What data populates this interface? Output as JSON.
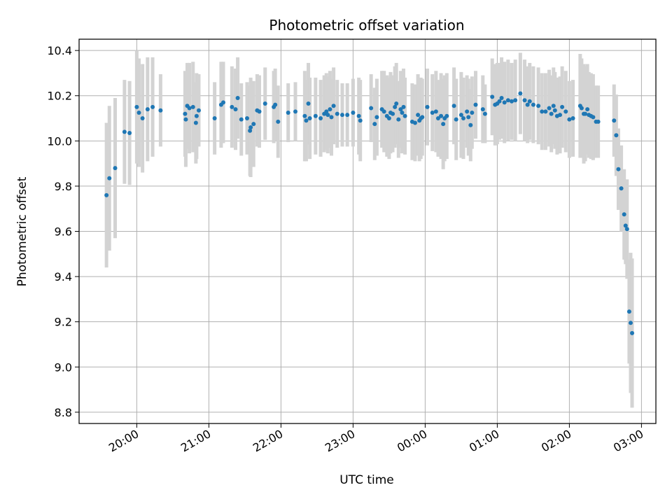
{
  "chart_data": {
    "type": "scatter",
    "title": "Photometric offset variation",
    "xlabel": "UTC time",
    "ylabel": "Photometric offset",
    "x_unit": "hours UTC since 00:00 on the first night",
    "xlim": [
      19.2,
      27.2
    ],
    "ylim": [
      8.75,
      10.45
    ],
    "x_ticks": [
      {
        "value": 20,
        "label": "20:00"
      },
      {
        "value": 21,
        "label": "21:00"
      },
      {
        "value": 22,
        "label": "22:00"
      },
      {
        "value": 23,
        "label": "23:00"
      },
      {
        "value": 24,
        "label": "00:00"
      },
      {
        "value": 25,
        "label": "01:00"
      },
      {
        "value": 26,
        "label": "02:00"
      },
      {
        "value": 27,
        "label": "03:00"
      }
    ],
    "y_ticks": [
      {
        "value": 8.8,
        "label": "8.8"
      },
      {
        "value": 9.0,
        "label": "9.0"
      },
      {
        "value": 9.2,
        "label": "9.2"
      },
      {
        "value": 9.4,
        "label": "9.4"
      },
      {
        "value": 9.6,
        "label": "9.6"
      },
      {
        "value": 9.8,
        "label": "9.8"
      },
      {
        "value": 10.0,
        "label": "10.0"
      },
      {
        "value": 10.2,
        "label": "10.2"
      },
      {
        "value": 10.4,
        "label": "10.4"
      }
    ],
    "grid": true,
    "colors": {
      "points": "#1f77b4",
      "errorbars": "#d3d3d3",
      "grid": "#b0b0b0"
    },
    "series": [
      {
        "x": [
          19.58,
          19.62,
          19.7,
          19.83,
          19.9,
          20.0,
          20.03,
          20.08,
          20.15,
          20.22,
          20.33,
          20.67,
          20.68,
          20.7,
          20.73,
          20.78,
          20.82,
          20.83,
          20.86,
          21.08,
          21.17,
          21.2,
          21.32,
          21.37,
          21.4,
          21.45,
          21.53,
          21.57,
          21.58,
          21.62,
          21.67,
          21.7,
          21.78,
          21.9,
          21.92,
          21.96,
          22.1,
          22.2,
          22.33,
          22.35,
          22.38,
          22.4,
          22.48,
          22.55,
          22.6,
          22.63,
          22.65,
          22.68,
          22.7,
          22.73,
          22.78,
          22.85,
          22.92,
          23.0,
          23.08,
          23.1,
          23.25,
          23.3,
          23.33,
          23.4,
          23.43,
          23.47,
          23.5,
          23.52,
          23.55,
          23.58,
          23.6,
          23.63,
          23.66,
          23.68,
          23.7,
          23.72,
          23.82,
          23.86,
          23.9,
          23.92,
          23.94,
          23.96,
          24.03,
          24.1,
          24.15,
          24.18,
          24.22,
          24.25,
          24.27,
          24.3,
          24.4,
          24.43,
          24.5,
          24.53,
          24.58,
          24.6,
          24.63,
          24.65,
          24.7,
          24.8,
          24.83,
          24.93,
          24.97,
          25.0,
          25.03,
          25.06,
          25.1,
          25.15,
          25.2,
          25.25,
          25.32,
          25.38,
          25.42,
          25.45,
          25.5,
          25.57,
          25.62,
          25.67,
          25.72,
          25.75,
          25.78,
          25.8,
          25.83,
          25.87,
          25.9,
          25.95,
          26.0,
          26.05,
          26.15,
          26.17,
          26.2,
          26.22,
          26.25,
          26.27,
          26.3,
          26.33,
          26.37,
          26.4,
          26.62,
          26.65,
          26.68,
          26.72,
          26.76,
          26.78,
          26.8,
          26.83,
          26.85,
          26.87
        ],
        "y": [
          9.76,
          9.835,
          9.88,
          10.04,
          10.035,
          10.15,
          10.125,
          10.1,
          10.14,
          10.15,
          10.135,
          10.12,
          10.095,
          10.155,
          10.145,
          10.15,
          10.08,
          10.11,
          10.135,
          10.1,
          10.16,
          10.17,
          10.15,
          10.14,
          10.19,
          10.095,
          10.1,
          10.045,
          10.06,
          10.075,
          10.135,
          10.13,
          10.165,
          10.15,
          10.16,
          10.085,
          10.125,
          10.13,
          10.11,
          10.09,
          10.165,
          10.1,
          10.11,
          10.1,
          10.12,
          10.13,
          10.115,
          10.14,
          10.105,
          10.155,
          10.12,
          10.115,
          10.115,
          10.125,
          10.11,
          10.09,
          10.145,
          10.075,
          10.105,
          10.14,
          10.13,
          10.11,
          10.1,
          10.125,
          10.12,
          10.15,
          10.165,
          10.095,
          10.14,
          10.125,
          10.15,
          10.11,
          10.085,
          10.08,
          10.115,
          10.09,
          10.1,
          10.105,
          10.15,
          10.125,
          10.13,
          10.1,
          10.11,
          10.075,
          10.1,
          10.11,
          10.155,
          10.095,
          10.115,
          10.1,
          10.13,
          10.105,
          10.07,
          10.125,
          10.16,
          10.14,
          10.12,
          10.195,
          10.16,
          10.165,
          10.175,
          10.19,
          10.17,
          10.18,
          10.175,
          10.18,
          10.21,
          10.18,
          10.16,
          10.175,
          10.16,
          10.155,
          10.13,
          10.13,
          10.145,
          10.12,
          10.155,
          10.135,
          10.11,
          10.115,
          10.15,
          10.13,
          10.095,
          10.1,
          10.155,
          10.145,
          10.12,
          10.12,
          10.14,
          10.115,
          10.11,
          10.105,
          10.085,
          10.085,
          10.09,
          10.025,
          9.875,
          9.79,
          9.675,
          9.625,
          9.61,
          9.245,
          9.195,
          9.15
        ],
        "err": [
          0.32,
          0.32,
          0.31,
          0.23,
          0.23,
          0.25,
          0.24,
          0.24,
          0.23,
          0.22,
          0.16,
          0.19,
          0.21,
          0.19,
          0.2,
          0.2,
          0.18,
          0.19,
          0.16,
          0.16,
          0.19,
          0.18,
          0.18,
          0.18,
          0.18,
          0.16,
          0.16,
          0.2,
          0.22,
          0.19,
          0.16,
          0.16,
          0.16,
          0.16,
          0.16,
          0.16,
          0.13,
          0.13,
          0.2,
          0.18,
          0.18,
          0.18,
          0.17,
          0.17,
          0.17,
          0.17,
          0.17,
          0.17,
          0.17,
          0.17,
          0.15,
          0.14,
          0.14,
          0.15,
          0.17,
          0.18,
          0.15,
          0.16,
          0.17,
          0.17,
          0.18,
          0.18,
          0.18,
          0.18,
          0.17,
          0.18,
          0.18,
          0.17,
          0.17,
          0.18,
          0.17,
          0.17,
          0.17,
          0.17,
          0.18,
          0.18,
          0.18,
          0.17,
          0.17,
          0.17,
          0.18,
          0.17,
          0.19,
          0.2,
          0.19,
          0.19,
          0.17,
          0.18,
          0.19,
          0.18,
          0.16,
          0.17,
          0.16,
          0.16,
          0.15,
          0.15,
          0.13,
          0.17,
          0.18,
          0.18,
          0.17,
          0.18,
          0.18,
          0.18,
          0.17,
          0.18,
          0.18,
          0.18,
          0.17,
          0.17,
          0.17,
          0.17,
          0.17,
          0.17,
          0.17,
          0.17,
          0.17,
          0.17,
          0.17,
          0.17,
          0.18,
          0.18,
          0.17,
          0.17,
          0.23,
          0.22,
          0.22,
          0.21,
          0.2,
          0.19,
          0.19,
          0.19,
          0.16,
          0.16,
          0.16,
          0.18,
          0.18,
          0.19,
          0.2,
          0.17,
          0.22,
          0.23,
          0.31,
          0.33
        ]
      }
    ]
  }
}
